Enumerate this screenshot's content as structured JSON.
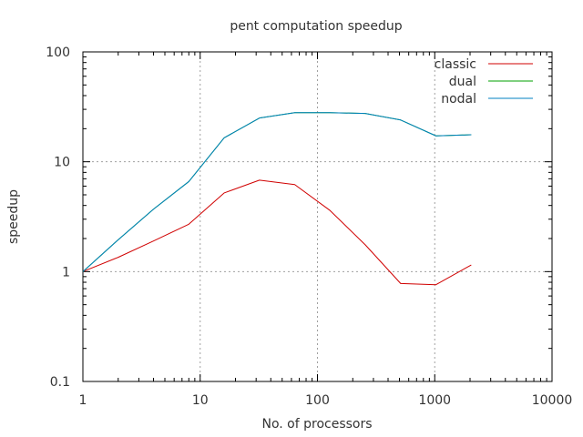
{
  "chart_data": {
    "type": "line",
    "title": "pent computation speedup",
    "xlabel": "No. of processors",
    "ylabel": "speedup",
    "xscale": "log",
    "yscale": "log",
    "xlim": [
      1,
      10000
    ],
    "ylim": [
      0.1,
      100
    ],
    "xticks": [
      "1",
      "10",
      "100",
      "1000",
      "10000"
    ],
    "yticks": [
      "0.1",
      "1",
      "10",
      "100"
    ],
    "grid": true,
    "legend": "top-right",
    "series": [
      {
        "name": "classic",
        "color": "#d00000",
        "x": [
          1,
          2,
          4,
          8,
          16,
          32,
          64,
          128,
          256,
          512,
          1024,
          2048
        ],
        "y": [
          1.0,
          1.35,
          1.9,
          2.7,
          5.2,
          6.8,
          6.2,
          3.6,
          1.75,
          0.78,
          0.76,
          1.15
        ]
      },
      {
        "name": "dual",
        "color": "#00a000",
        "x": [
          1,
          2,
          4,
          8,
          16,
          32,
          64,
          128,
          256,
          512,
          1024,
          2048
        ],
        "y": [
          1.0,
          1.95,
          3.7,
          6.6,
          16.5,
          25,
          28,
          28,
          27.5,
          24,
          17.2,
          17.6
        ]
      },
      {
        "name": "nodal",
        "color": "#0080c0",
        "x": [
          1,
          2,
          4,
          8,
          16,
          32,
          64,
          128,
          256,
          512,
          1024,
          2048
        ],
        "y": [
          1.0,
          1.95,
          3.7,
          6.6,
          16.5,
          25,
          28,
          28,
          27.5,
          24,
          17.2,
          17.6
        ]
      }
    ]
  }
}
